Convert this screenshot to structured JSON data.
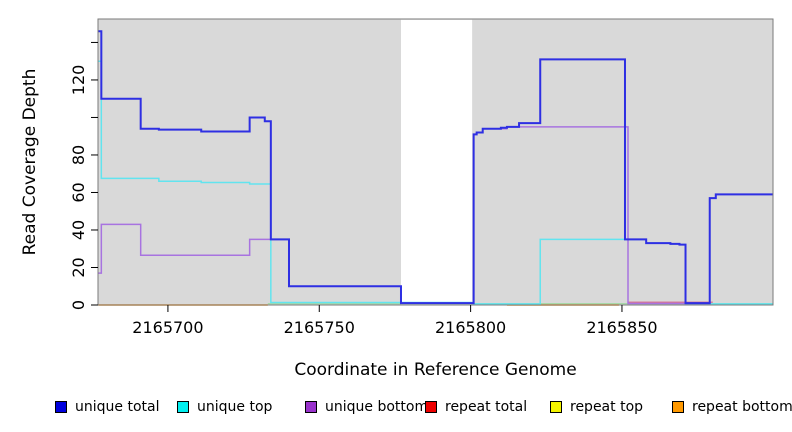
{
  "chart_data": {
    "type": "line",
    "title": "",
    "xlabel": "Coordinate in Reference Genome",
    "ylabel": "Read Coverage Depth",
    "xlim": [
      2165676.9,
      2165899.9
    ],
    "ylim": [
      0,
      152.5
    ],
    "grid": false,
    "plot_background": "#d9d9d9",
    "masked_region": {
      "from": 2165777,
      "to": 2165800.5,
      "color": "#ffffff"
    },
    "x_ticks": [
      {
        "value": 2165700,
        "label": "2165700"
      },
      {
        "value": 2165750,
        "label": "2165750"
      },
      {
        "value": 2165800,
        "label": "2165800"
      },
      {
        "value": 2165850,
        "label": "2165850"
      }
    ],
    "y_ticks": [
      {
        "value": 0,
        "label": "0"
      },
      {
        "value": 20,
        "label": "20"
      },
      {
        "value": 40,
        "label": "40"
      },
      {
        "value": 60,
        "label": "60"
      },
      {
        "value": 80,
        "label": "80"
      },
      {
        "value": 100,
        "label": ""
      },
      {
        "value": 120,
        "label": "120"
      },
      {
        "value": 140,
        "label": ""
      }
    ],
    "series": [
      {
        "name": "repeat top",
        "color": "#9fd9a0",
        "width": 1.2,
        "segments": [
          [
            [
              2165733,
              0.7
            ],
            [
              2165900,
              0.7
            ]
          ]
        ]
      },
      {
        "name": "repeat bottom",
        "color": "#ff9614",
        "width": 1.5,
        "segments": [
          [
            [
              2165677,
              0
            ],
            [
              2165733,
              0
            ]
          ],
          [
            [
              2165812,
              0
            ],
            [
              2165849,
              0
            ]
          ]
        ]
      },
      {
        "name": "repeat total",
        "color": "#d4608a",
        "width": 1.2,
        "segments": [
          [
            [
              2165852,
              1.5
            ],
            [
              2165880,
              1.5
            ]
          ]
        ]
      },
      {
        "name": "unique top",
        "color": "#62e4ef",
        "width": 1.5,
        "segments": [
          [
            [
              2165677,
              130
            ],
            [
              2165678,
              67.5
            ],
            [
              2165697,
              66
            ],
            [
              2165711,
              65.3
            ],
            [
              2165727,
              64.5
            ],
            [
              2165734,
              1.3
            ],
            [
              2165801,
              0.6
            ],
            [
              2165823,
              35
            ],
            [
              2165851,
              35
            ],
            [
              2165858,
              33
            ],
            [
              2165866,
              32.6
            ],
            [
              2165869,
              32.2
            ],
            [
              2165871,
              0.6
            ],
            [
              2165900,
              0.6
            ]
          ]
        ]
      },
      {
        "name": "unique bottom",
        "color": "#a873e0",
        "width": 1.5,
        "segments": [
          [
            [
              2165677,
              17
            ],
            [
              2165678,
              43
            ],
            [
              2165691,
              26.5
            ],
            [
              2165727,
              35
            ],
            [
              2165740,
              10
            ],
            [
              2165777,
              1
            ],
            [
              2165801,
              91
            ],
            [
              2165802,
              92
            ],
            [
              2165804,
              94
            ],
            [
              2165812,
              95
            ],
            [
              2165852,
              0.8
            ],
            [
              2165879,
              57
            ],
            [
              2165881,
              59
            ],
            [
              2165900,
              59
            ]
          ]
        ]
      },
      {
        "name": "unique total",
        "color": "#2e2fe3",
        "width": 2,
        "segments": [
          [
            [
              2165677,
              146
            ],
            [
              2165678,
              110
            ],
            [
              2165691,
              94
            ],
            [
              2165697,
              93.5
            ],
            [
              2165711,
              92.5
            ],
            [
              2165727,
              100
            ],
            [
              2165732,
              98
            ],
            [
              2165734,
              35
            ],
            [
              2165740,
              10
            ],
            [
              2165777,
              1
            ],
            [
              2165801,
              91
            ],
            [
              2165802,
              92
            ],
            [
              2165804,
              94
            ],
            [
              2165810,
              94.5
            ],
            [
              2165812,
              95
            ],
            [
              2165816,
              97
            ],
            [
              2165823,
              131
            ],
            [
              2165851,
              35
            ],
            [
              2165858,
              33
            ],
            [
              2165866,
              32.6
            ],
            [
              2165869,
              32.2
            ],
            [
              2165871,
              1
            ],
            [
              2165879,
              57
            ],
            [
              2165881,
              59
            ],
            [
              2165900,
              59
            ]
          ]
        ]
      }
    ],
    "legend": [
      {
        "label": "unique total",
        "color": "#0000dd"
      },
      {
        "label": "unique top",
        "color": "#00eeee"
      },
      {
        "label": "unique bottom",
        "color": "#9932cc"
      },
      {
        "label": "repeat total",
        "color": "#ee0000"
      },
      {
        "label": "repeat top",
        "color": "#f5f500"
      },
      {
        "label": "repeat bottom",
        "color": "#ff9900"
      }
    ],
    "legend_position": "bottom"
  }
}
